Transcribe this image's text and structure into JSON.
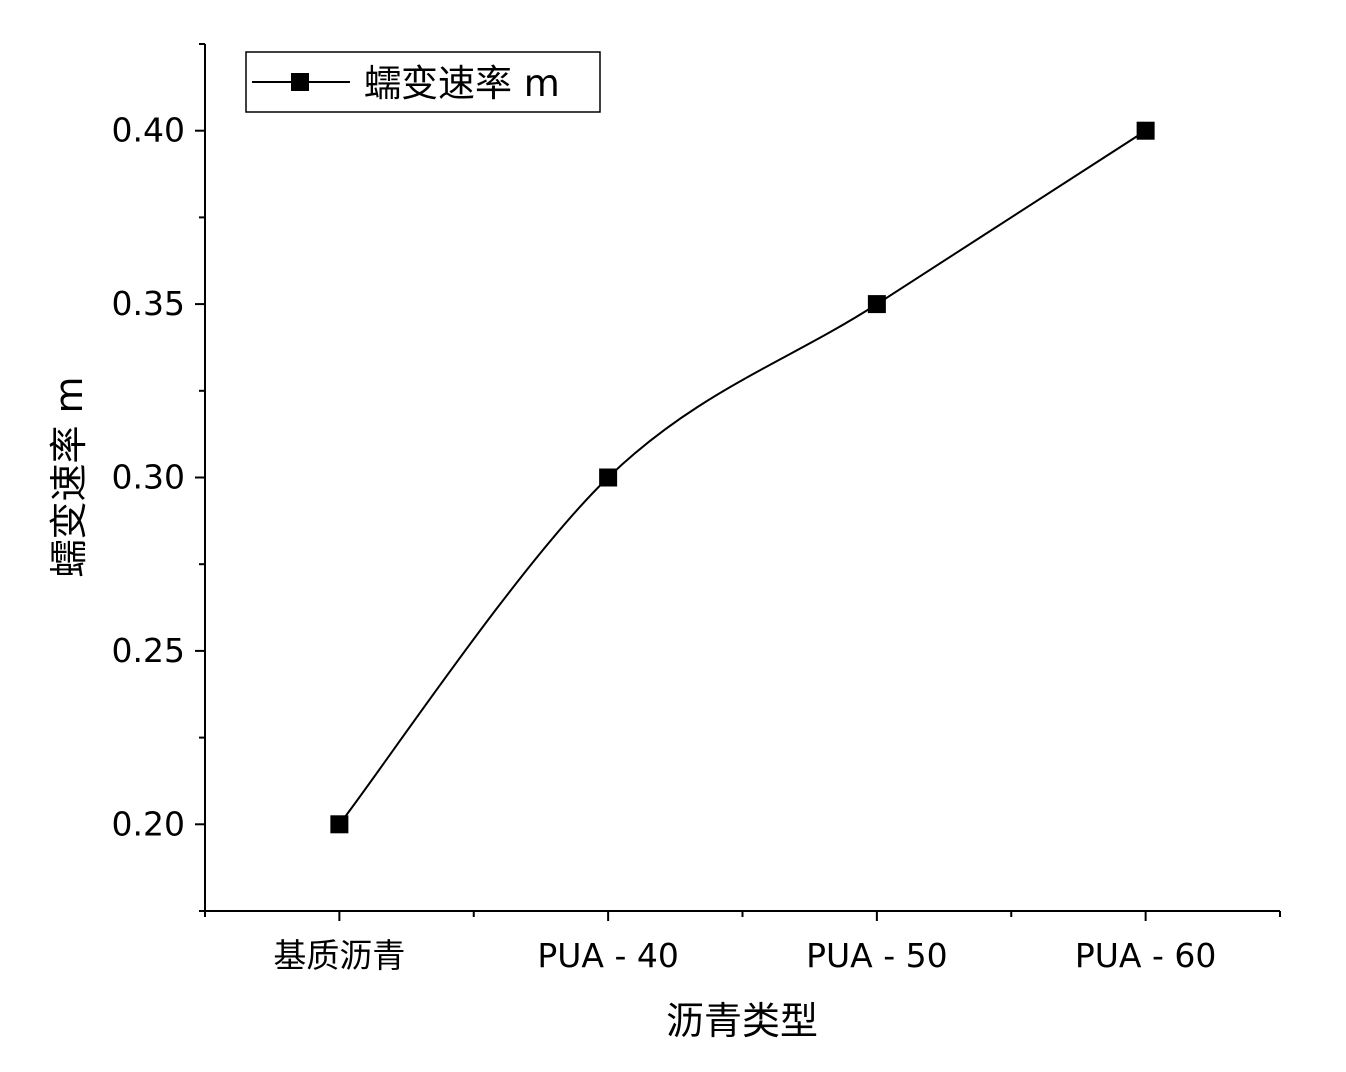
{
  "chart_data": {
    "type": "line",
    "categories": [
      "基质沥青",
      "PUA - 40",
      "PUA - 50",
      "PUA - 60"
    ],
    "series": [
      {
        "name": "蠕变速率 m",
        "values": [
          0.2,
          0.3,
          0.35,
          0.4
        ],
        "marker": "square",
        "smooth": true
      }
    ],
    "xlabel": "沥青类型",
    "ylabel": "蠕变速率 m",
    "ylim": [
      0.175,
      0.425
    ],
    "yticks": [
      0.2,
      0.25,
      0.3,
      0.35,
      0.4
    ],
    "ytick_labels": [
      "0.20",
      "0.25",
      "0.30",
      "0.35",
      "0.40"
    ],
    "grid": false,
    "legend_position": "top-left",
    "colors": {
      "line": "#000000",
      "marker": "#000000",
      "axis": "#000000"
    }
  }
}
